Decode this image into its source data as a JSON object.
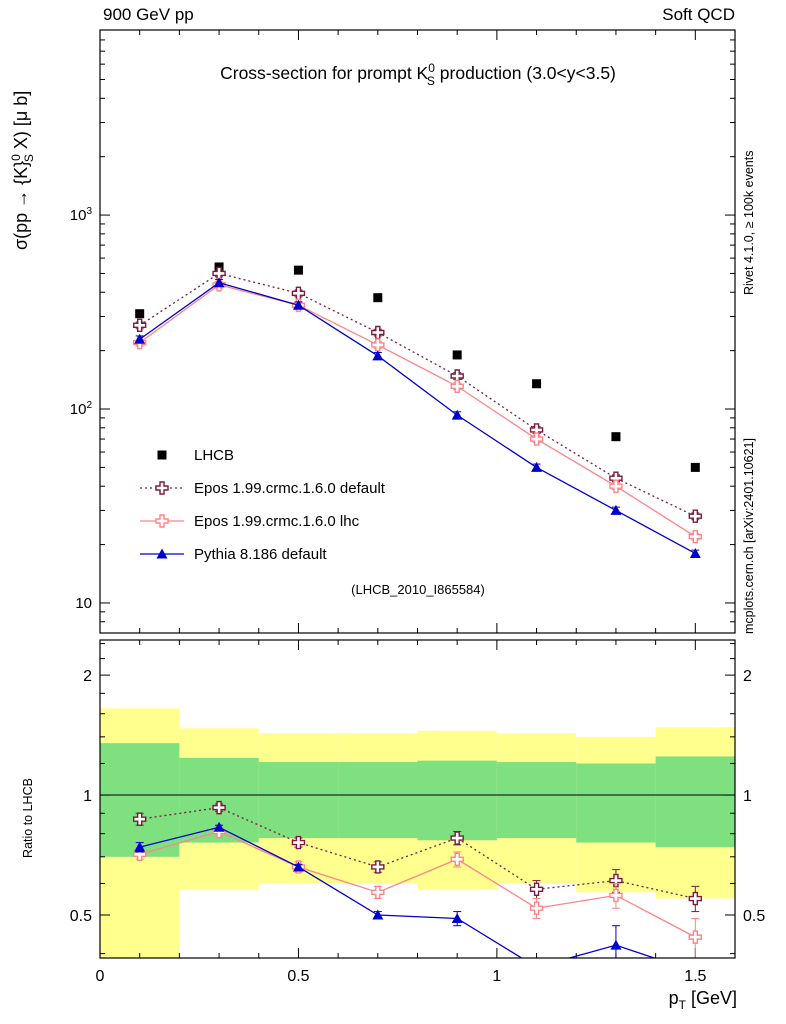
{
  "header": {
    "left": "900 GeV pp",
    "right": "Soft QCD"
  },
  "title": {
    "pre": "Cross-section for prompt K",
    "sup": "0",
    "sub": "S",
    "post": " production (3.0<y<3.5)"
  },
  "watermark": "(LHCB_2010_I865584)",
  "axes": {
    "ylabel": {
      "pre": "σ(pp → {K}",
      "sup": "0",
      "sub": "S",
      "post": " X) [μ b]"
    },
    "ratio_ylabel": "Ratio to LHCB",
    "xlabel": {
      "pre": "p",
      "sub": "T",
      "post": " [GeV]"
    }
  },
  "credits": {
    "rivet": "Rivet 4.1.0, ≥ 100k events",
    "mcplots": "mcplots.cern.ch [arXiv:2401.10621]"
  },
  "chart_data": {
    "type": "line",
    "xlabel": "p_T [GeV]",
    "ylabel": "sigma(pp -> K0S X) [microbarn]",
    "x": [
      0.1,
      0.3,
      0.5,
      0.7,
      0.9,
      1.1,
      1.3,
      1.5
    ],
    "xlim": [
      0,
      1.6
    ],
    "xticks": {
      "major": [
        0,
        0.5,
        1,
        1.5
      ],
      "labels": [
        "0",
        "0.5",
        "1",
        "1.5"
      ],
      "minor_step": 0.1
    },
    "main_err_frac": 0.04,
    "main": {
      "ylog": true,
      "ylim": [
        7,
        9000
      ],
      "yticks": [
        {
          "v": 10,
          "base": "10",
          "exp": ""
        },
        {
          "v": 100,
          "base": "10",
          "exp": "2"
        },
        {
          "v": 1000,
          "base": "10",
          "exp": "3"
        }
      ]
    },
    "ratio": {
      "ylog": true,
      "ylim": [
        0.39,
        2.45
      ],
      "yticks": [
        {
          "v": 0.5,
          "label": "0.5"
        },
        {
          "v": 1,
          "label": "1"
        },
        {
          "v": 2,
          "label": "2"
        }
      ],
      "minor": [
        0.4,
        0.6,
        0.7,
        0.8,
        0.9,
        1.2,
        1.4,
        1.6,
        1.8,
        2.2,
        2.4
      ],
      "ref_line": 1,
      "bin_edges": [
        0,
        0.2,
        0.4,
        0.6,
        0.8,
        1.0,
        1.2,
        1.4,
        1.6
      ],
      "bands": {
        "yellow": {
          "color": "#ffff8e",
          "lo": [
            0.38,
            0.58,
            0.6,
            0.6,
            0.58,
            0.6,
            0.57,
            0.55
          ],
          "hi": [
            1.65,
            1.47,
            1.43,
            1.43,
            1.45,
            1.43,
            1.4,
            1.48
          ]
        },
        "green": {
          "color": "#7fe07f",
          "lo": [
            0.7,
            0.76,
            0.78,
            0.78,
            0.77,
            0.78,
            0.76,
            0.74
          ],
          "hi": [
            1.35,
            1.24,
            1.21,
            1.21,
            1.22,
            1.21,
            1.2,
            1.25
          ]
        }
      }
    },
    "series": [
      {
        "name": "LHCB",
        "color": "#000000",
        "line": "none",
        "marker": "square-filled",
        "values": [
          310,
          540,
          520,
          375,
          190,
          135,
          72,
          50
        ],
        "ratio": null,
        "ratio_err": null
      },
      {
        "name": "Epos 1.99.crmc.1.6.0 default",
        "color": "#7b1a3c",
        "line": "dotted",
        "marker": "cross-open",
        "values": [
          270,
          500,
          395,
          248,
          148,
          78,
          44,
          28
        ],
        "ratio": [
          0.87,
          0.93,
          0.76,
          0.66,
          0.78,
          0.58,
          0.61,
          0.55
        ],
        "ratio_err": [
          0.03,
          0.02,
          0.02,
          0.02,
          0.03,
          0.03,
          0.04,
          0.04
        ]
      },
      {
        "name": "Epos 1.99.crmc.1.6.0 lhc",
        "color": "#ff8486",
        "line": "solid",
        "marker": "cross-open",
        "values": [
          220,
          437,
          343,
          214,
          131,
          70,
          40,
          22
        ],
        "ratio": [
          0.71,
          0.81,
          0.66,
          0.57,
          0.69,
          0.52,
          0.56,
          0.44
        ],
        "ratio_err": [
          0.02,
          0.02,
          0.02,
          0.02,
          0.03,
          0.03,
          0.04,
          0.05
        ]
      },
      {
        "name": "Pythia 8.186 default",
        "color": "#0000cd",
        "line": "solid",
        "marker": "triangle-filled",
        "values": [
          229,
          448,
          343,
          188,
          93,
          50,
          30,
          18
        ],
        "ratio": [
          0.74,
          0.83,
          0.66,
          0.5,
          0.49,
          0.37,
          0.42,
          0.36
        ],
        "ratio_err": [
          0.02,
          0.01,
          0.01,
          0.01,
          0.02,
          0.02,
          0.05,
          0.03
        ]
      }
    ]
  }
}
